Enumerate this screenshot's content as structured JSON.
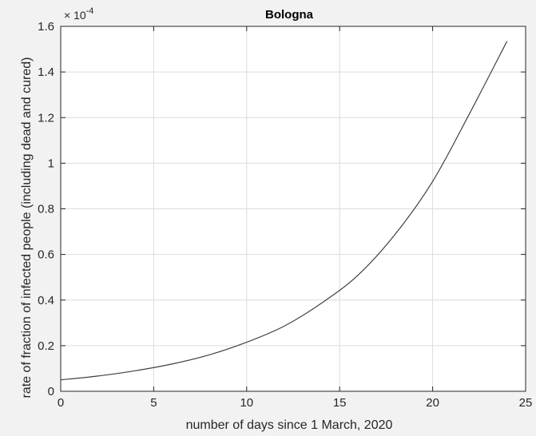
{
  "chart_data": {
    "type": "line",
    "title": "Bologna",
    "xlabel": "number of days since 1 March, 2020",
    "ylabel": "rate of fraction of infected people (including dead and cured)",
    "xlim": [
      0,
      25
    ],
    "ylim": [
      0,
      1.6
    ],
    "x_ticks": [
      0,
      5,
      10,
      15,
      20,
      25
    ],
    "y_ticks": [
      0,
      0.2,
      0.4,
      0.6,
      0.8,
      1,
      1.2,
      1.4,
      1.6
    ],
    "x_tick_labels": [
      "0",
      "5",
      "10",
      "15",
      "20",
      "25"
    ],
    "y_tick_labels": [
      "0",
      "0.2",
      "0.4",
      "0.6",
      "0.8",
      "1",
      "1.2",
      "1.4",
      "1.6"
    ],
    "y_multiplier_label": "× 10",
    "y_multiplier_exponent": "-4",
    "grid": true,
    "line_color": "#404040",
    "series": [
      {
        "x": [
          0,
          2,
          4,
          6,
          8,
          10,
          12,
          14,
          16,
          18,
          20,
          22,
          24
        ],
        "values": [
          0.05,
          0.067,
          0.09,
          0.12,
          0.16,
          0.215,
          0.285,
          0.385,
          0.51,
          0.69,
          0.92,
          1.22,
          1.535
        ]
      }
    ]
  }
}
